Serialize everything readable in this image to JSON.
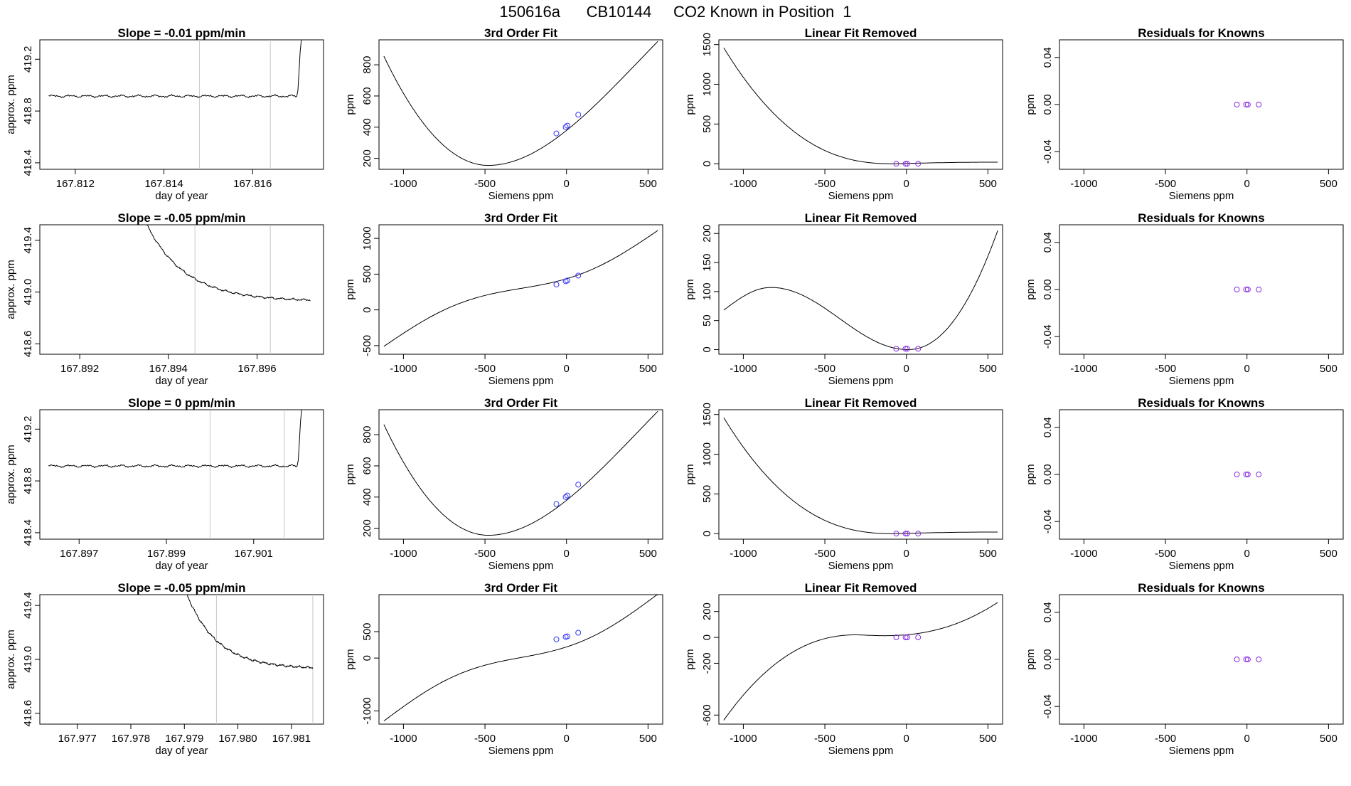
{
  "page": {
    "title": "150616a      CB10144     CO2 Known in Position  1",
    "colors": {
      "fit_line": "#000000",
      "marker_blue": "#3333ff",
      "marker_purple": "#8a2be2",
      "vline": "#c8c8c8",
      "dot_red": "#e03030"
    }
  },
  "labels": {
    "day_of_year": "day of year",
    "approx_ppm": "approx. ppm",
    "siemens_ppm": "Siemens ppm",
    "ppm": "ppm",
    "third_order_title": "3rd Order Fit",
    "linear_removed_title": "Linear Fit Removed",
    "residuals_title": "Residuals for Knowns"
  },
  "chart_data": {
    "type": "line",
    "known_siemens": [
      -62,
      -5,
      5,
      72
    ],
    "siemens_ticks": [
      -1000,
      -500,
      0,
      500
    ],
    "siemens_range": [
      -1120,
      560
    ],
    "residual_ticks": [
      0.04,
      0.0,
      -0.04
    ],
    "residual_range": [
      -0.055,
      0.055
    ],
    "rows": [
      {
        "ts_title": "Slope =  -0.01  ppm/min",
        "ts_xticks": [
          "167.812",
          "167.814",
          "167.816"
        ],
        "ts_xtick_values": [
          167.812,
          167.814,
          167.816
        ],
        "ts_xrange": [
          167.8112,
          167.8176
        ],
        "ts_yticks": [
          "418.4",
          "418.8",
          "419.2"
        ],
        "ts_ytick_values": [
          418.4,
          418.8,
          419.2
        ],
        "ts_yrange": [
          418.35,
          419.35
        ],
        "ts_vlines": [
          167.8148,
          167.8164
        ],
        "ts_shape": "flat_then_rise",
        "ts_base": 418.915,
        "ts_span": [
          167.8114,
          167.8171
        ],
        "fit_title": "3rd Order Fit",
        "fit_yticks": [
          200,
          400,
          600,
          800
        ],
        "fit_yrange": [
          130,
          960
        ],
        "fit_curve": {
          "min_x": -480,
          "min_y": 155,
          "start_y": 855,
          "end_y": 950
        },
        "known_ppm": [
          360,
          400,
          410,
          480
        ],
        "lin_title": "Linear Fit Removed",
        "lin_yticks": [
          0,
          500,
          1000,
          1500
        ],
        "lin_yrange": [
          -70,
          1560
        ],
        "lin_curve": "decay",
        "lin_params": {
          "start": 1460,
          "end": 20
        }
      },
      {
        "ts_title": "Slope =  -0.05  ppm/min",
        "ts_xticks": [
          "167.892",
          "167.894",
          "167.896"
        ],
        "ts_xtick_values": [
          167.892,
          167.894,
          167.896
        ],
        "ts_xrange": [
          167.8911,
          167.8975
        ],
        "ts_yticks": [
          "418.6",
          "419.0",
          "419.4"
        ],
        "ts_ytick_values": [
          418.6,
          419.0,
          419.4
        ],
        "ts_yrange": [
          418.52,
          419.52
        ],
        "ts_vlines": [
          167.8946,
          167.8963
        ],
        "ts_shape": "drop_then_flat",
        "ts_base": 418.93,
        "ts_span": [
          167.8935,
          167.8972
        ],
        "fit_title": "3rd Order Fit",
        "fit_yticks": [
          -500,
          0,
          500,
          1000
        ],
        "fit_yrange": [
          -620,
          1190
        ],
        "fit_curve": {
          "start_y": -510,
          "end_y": 1110,
          "type": "scurve"
        },
        "known_ppm": [
          355,
          400,
          410,
          480
        ],
        "lin_title": "Linear Fit Removed",
        "lin_yticks": [
          0,
          50,
          100,
          150,
          200
        ],
        "lin_yrange": [
          -8,
          215
        ],
        "lin_curve": "cubic_hump",
        "lin_params": {
          "start": 68,
          "peak": 107,
          "peak_x": -830,
          "trough": 0,
          "trough_x": 10,
          "end": 205
        }
      },
      {
        "ts_title": "Slope =  0  ppm/min",
        "ts_xticks": [
          "167.897",
          "167.899",
          "167.901"
        ],
        "ts_xtick_values": [
          167.897,
          167.899,
          167.901
        ],
        "ts_xrange": [
          167.8961,
          167.9026
        ],
        "ts_yticks": [
          "418.4",
          "418.8",
          "419.2"
        ],
        "ts_ytick_values": [
          418.4,
          418.8,
          419.2
        ],
        "ts_yrange": [
          418.35,
          419.35
        ],
        "ts_vlines": [
          167.9,
          167.9017
        ],
        "ts_shape": "flat_then_rise",
        "ts_base": 418.915,
        "ts_span": [
          167.8963,
          167.9021
        ],
        "fit_title": "3rd Order Fit",
        "fit_yticks": [
          200,
          400,
          600,
          800
        ],
        "fit_yrange": [
          130,
          960
        ],
        "fit_curve": {
          "min_x": -480,
          "min_y": 155,
          "start_y": 865,
          "end_y": 950
        },
        "known_ppm": [
          355,
          400,
          410,
          480
        ],
        "lin_title": "Linear Fit Removed",
        "lin_yticks": [
          0,
          500,
          1000,
          1500
        ],
        "lin_yrange": [
          -70,
          1560
        ],
        "lin_curve": "decay",
        "lin_params": {
          "start": 1460,
          "end": 20
        }
      },
      {
        "ts_title": "Slope =  -0.05  ppm/min",
        "ts_xticks": [
          "167.977",
          "167.978",
          "167.979",
          "167.980",
          "167.981"
        ],
        "ts_xtick_values": [
          167.977,
          167.978,
          167.979,
          167.98,
          167.981
        ],
        "ts_xrange": [
          167.9763,
          167.9816
        ],
        "ts_yticks": [
          "418.6",
          "419.0",
          "419.4"
        ],
        "ts_ytick_values": [
          418.6,
          419.0,
          419.4
        ],
        "ts_yrange": [
          418.52,
          419.48
        ],
        "ts_vlines": [
          167.9796,
          167.9814
        ],
        "ts_shape": "drop_then_flat",
        "ts_base": 418.93,
        "ts_span": [
          167.979,
          167.9814
        ],
        "fit_title": "3rd Order Fit",
        "fit_yticks": [
          -1000,
          0,
          500
        ],
        "fit_yrange": [
          -1250,
          1200
        ],
        "fit_curve": {
          "start_y": -1190,
          "end_y": 1210,
          "type": "scurve"
        },
        "known_ppm": [
          355,
          400,
          410,
          480
        ],
        "lin_title": "Linear Fit Removed",
        "lin_yticks": [
          200,
          0,
          -200,
          -600
        ],
        "lin_yrange": [
          -670,
          330
        ],
        "lin_curve": "cubic_rise",
        "lin_params": {
          "start": -640,
          "end": 270
        }
      }
    ]
  }
}
